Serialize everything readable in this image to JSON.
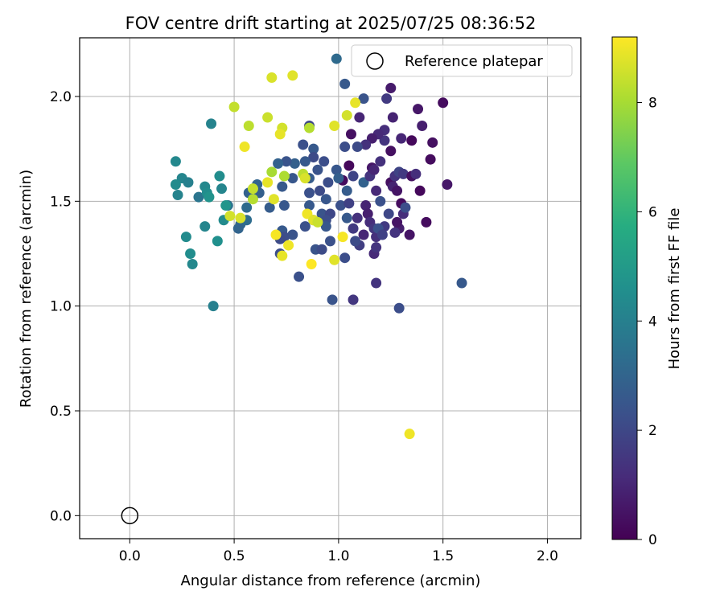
{
  "chart_data": {
    "type": "scatter",
    "title": "FOV centre drift starting at 2025/07/25 08:36:52",
    "xlabel": "Angular distance from reference (arcmin)",
    "ylabel": "Rotation from reference (arcmin)",
    "xlim": [
      -0.24,
      2.16
    ],
    "ylim": [
      -0.11,
      2.28
    ],
    "xticks": [
      0.0,
      0.5,
      1.0,
      1.5,
      2.0
    ],
    "xtick_labels": [
      "0.0",
      "0.5",
      "1.0",
      "1.5",
      "2.0"
    ],
    "yticks": [
      0.0,
      0.5,
      1.0,
      1.5,
      2.0
    ],
    "ytick_labels": [
      "0.0",
      "0.5",
      "1.0",
      "1.5",
      "2.0"
    ],
    "grid": true,
    "legend": {
      "position": "top-right",
      "entries": [
        "Reference platepar"
      ]
    },
    "reference_point": {
      "x": 0.0,
      "y": 0.0,
      "label": "Reference platepar"
    },
    "colorbar": {
      "label": "Hours from first FF file",
      "range": [
        0,
        9.2
      ],
      "ticks": [
        0,
        2,
        4,
        6,
        8
      ],
      "tick_labels": [
        "0",
        "2",
        "4",
        "6",
        "8"
      ],
      "colormap": "viridis"
    },
    "points": [
      {
        "x": 1.5,
        "y": 1.97,
        "h": 0.3
      },
      {
        "x": 1.38,
        "y": 1.94,
        "h": 0.6
      },
      {
        "x": 1.25,
        "y": 2.04,
        "h": 0.7
      },
      {
        "x": 1.35,
        "y": 1.79,
        "h": 0.2
      },
      {
        "x": 1.45,
        "y": 1.78,
        "h": 0.4
      },
      {
        "x": 1.44,
        "y": 1.7,
        "h": 0.3
      },
      {
        "x": 1.4,
        "y": 1.86,
        "h": 0.8
      },
      {
        "x": 1.39,
        "y": 1.55,
        "h": 0.2
      },
      {
        "x": 1.42,
        "y": 1.4,
        "h": 0.3
      },
      {
        "x": 1.34,
        "y": 1.34,
        "h": 0.5
      },
      {
        "x": 1.52,
        "y": 1.58,
        "h": 0.6
      },
      {
        "x": 1.25,
        "y": 1.74,
        "h": 0.4
      },
      {
        "x": 1.26,
        "y": 1.9,
        "h": 0.9
      },
      {
        "x": 1.22,
        "y": 1.84,
        "h": 1.2
      },
      {
        "x": 1.22,
        "y": 1.79,
        "h": 1.4
      },
      {
        "x": 1.19,
        "y": 1.82,
        "h": 1.1
      },
      {
        "x": 1.23,
        "y": 1.99,
        "h": 1.6
      },
      {
        "x": 1.16,
        "y": 1.8,
        "h": 0.8
      },
      {
        "x": 1.1,
        "y": 1.9,
        "h": 1.0
      },
      {
        "x": 1.13,
        "y": 1.77,
        "h": 1.3
      },
      {
        "x": 1.06,
        "y": 1.82,
        "h": 0.4
      },
      {
        "x": 1.05,
        "y": 1.67,
        "h": 0.2
      },
      {
        "x": 1.02,
        "y": 1.6,
        "h": 0.3
      },
      {
        "x": 1.07,
        "y": 1.62,
        "h": 1.9
      },
      {
        "x": 1.09,
        "y": 1.76,
        "h": 2.1
      },
      {
        "x": 1.12,
        "y": 1.99,
        "h": 2.4
      },
      {
        "x": 1.03,
        "y": 2.06,
        "h": 2.6
      },
      {
        "x": 0.99,
        "y": 2.18,
        "h": 3.2
      },
      {
        "x": 1.03,
        "y": 1.76,
        "h": 2.2
      },
      {
        "x": 0.99,
        "y": 1.65,
        "h": 2.5
      },
      {
        "x": 0.95,
        "y": 1.59,
        "h": 2.2
      },
      {
        "x": 1.0,
        "y": 1.61,
        "h": 2.8
      },
      {
        "x": 1.01,
        "y": 1.48,
        "h": 2.3
      },
      {
        "x": 1.04,
        "y": 1.55,
        "h": 2.7
      },
      {
        "x": 1.04,
        "y": 1.42,
        "h": 2.6
      },
      {
        "x": 1.05,
        "y": 1.49,
        "h": 1.8
      },
      {
        "x": 1.07,
        "y": 1.37,
        "h": 1.6
      },
      {
        "x": 1.09,
        "y": 1.42,
        "h": 1.3
      },
      {
        "x": 1.1,
        "y": 1.29,
        "h": 1.7
      },
      {
        "x": 1.08,
        "y": 1.31,
        "h": 2.1
      },
      {
        "x": 1.03,
        "y": 1.23,
        "h": 2.2
      },
      {
        "x": 1.07,
        "y": 1.03,
        "h": 1.5
      },
      {
        "x": 0.97,
        "y": 1.03,
        "h": 2.4
      },
      {
        "x": 1.18,
        "y": 1.11,
        "h": 1.4
      },
      {
        "x": 1.29,
        "y": 0.99,
        "h": 2.2
      },
      {
        "x": 1.59,
        "y": 1.11,
        "h": 2.6
      },
      {
        "x": 1.12,
        "y": 1.59,
        "h": 2.9
      },
      {
        "x": 1.15,
        "y": 1.62,
        "h": 1.4
      },
      {
        "x": 1.16,
        "y": 1.66,
        "h": 0.6
      },
      {
        "x": 1.17,
        "y": 1.65,
        "h": 1.0
      },
      {
        "x": 1.2,
        "y": 1.69,
        "h": 1.3
      },
      {
        "x": 1.18,
        "y": 1.55,
        "h": 1.1
      },
      {
        "x": 1.13,
        "y": 1.48,
        "h": 0.9
      },
      {
        "x": 1.14,
        "y": 1.44,
        "h": 0.8
      },
      {
        "x": 1.15,
        "y": 1.4,
        "h": 1.2
      },
      {
        "x": 1.12,
        "y": 1.34,
        "h": 1.0
      },
      {
        "x": 1.17,
        "y": 1.37,
        "h": 1.5
      },
      {
        "x": 1.18,
        "y": 1.33,
        "h": 1.3
      },
      {
        "x": 1.2,
        "y": 1.5,
        "h": 2.3
      },
      {
        "x": 1.22,
        "y": 1.38,
        "h": 1.6
      },
      {
        "x": 1.24,
        "y": 1.44,
        "h": 2.0
      },
      {
        "x": 1.25,
        "y": 1.59,
        "h": 0.4
      },
      {
        "x": 1.26,
        "y": 1.57,
        "h": 0.9
      },
      {
        "x": 1.27,
        "y": 1.62,
        "h": 1.4
      },
      {
        "x": 1.29,
        "y": 1.64,
        "h": 1.9
      },
      {
        "x": 1.31,
        "y": 1.63,
        "h": 1.6
      },
      {
        "x": 1.28,
        "y": 1.55,
        "h": 0.5
      },
      {
        "x": 1.3,
        "y": 1.49,
        "h": 0.3
      },
      {
        "x": 1.31,
        "y": 1.44,
        "h": 1.2
      },
      {
        "x": 1.29,
        "y": 1.37,
        "h": 0.8
      },
      {
        "x": 1.28,
        "y": 1.4,
        "h": 0.5
      },
      {
        "x": 1.27,
        "y": 1.35,
        "h": 1.4
      },
      {
        "x": 1.32,
        "y": 1.47,
        "h": 2.2
      },
      {
        "x": 1.35,
        "y": 1.62,
        "h": 0.4
      },
      {
        "x": 1.37,
        "y": 1.63,
        "h": 1.2
      },
      {
        "x": 1.3,
        "y": 1.8,
        "h": 1.0
      },
      {
        "x": 1.17,
        "y": 1.25,
        "h": 1.1
      },
      {
        "x": 1.18,
        "y": 1.28,
        "h": 1.4
      },
      {
        "x": 1.19,
        "y": 1.37,
        "h": 2.3
      },
      {
        "x": 1.21,
        "y": 1.34,
        "h": 1.8
      },
      {
        "x": 0.86,
        "y": 1.86,
        "h": 2.0
      },
      {
        "x": 0.88,
        "y": 1.75,
        "h": 2.6
      },
      {
        "x": 0.83,
        "y": 1.77,
        "h": 2.3
      },
      {
        "x": 0.88,
        "y": 1.71,
        "h": 2.1
      },
      {
        "x": 0.84,
        "y": 1.69,
        "h": 2.6
      },
      {
        "x": 0.79,
        "y": 1.68,
        "h": 2.8
      },
      {
        "x": 0.75,
        "y": 1.69,
        "h": 2.4
      },
      {
        "x": 0.71,
        "y": 1.68,
        "h": 2.9
      },
      {
        "x": 0.9,
        "y": 1.65,
        "h": 2.4
      },
      {
        "x": 0.93,
        "y": 1.69,
        "h": 2.2
      },
      {
        "x": 0.86,
        "y": 1.61,
        "h": 2.7
      },
      {
        "x": 0.78,
        "y": 1.61,
        "h": 2.5
      },
      {
        "x": 0.73,
        "y": 1.57,
        "h": 2.6
      },
      {
        "x": 0.86,
        "y": 1.54,
        "h": 2.3
      },
      {
        "x": 0.91,
        "y": 1.55,
        "h": 2.1
      },
      {
        "x": 0.94,
        "y": 1.51,
        "h": 2.5
      },
      {
        "x": 0.86,
        "y": 1.48,
        "h": 2.6
      },
      {
        "x": 0.74,
        "y": 1.48,
        "h": 2.5
      },
      {
        "x": 0.67,
        "y": 1.47,
        "h": 2.7
      },
      {
        "x": 0.92,
        "y": 1.44,
        "h": 2.4
      },
      {
        "x": 0.96,
        "y": 1.44,
        "h": 2.0
      },
      {
        "x": 0.94,
        "y": 1.41,
        "h": 2.2
      },
      {
        "x": 0.88,
        "y": 1.41,
        "h": 2.6
      },
      {
        "x": 0.94,
        "y": 1.38,
        "h": 2.5
      },
      {
        "x": 0.84,
        "y": 1.38,
        "h": 2.3
      },
      {
        "x": 0.78,
        "y": 1.34,
        "h": 2.4
      },
      {
        "x": 0.73,
        "y": 1.36,
        "h": 2.6
      },
      {
        "x": 0.74,
        "y": 1.33,
        "h": 2.2
      },
      {
        "x": 0.72,
        "y": 1.32,
        "h": 2.1
      },
      {
        "x": 0.96,
        "y": 1.31,
        "h": 2.3
      },
      {
        "x": 0.89,
        "y": 1.27,
        "h": 2.4
      },
      {
        "x": 0.92,
        "y": 1.27,
        "h": 2.1
      },
      {
        "x": 0.72,
        "y": 1.25,
        "h": 2.2
      },
      {
        "x": 0.81,
        "y": 1.14,
        "h": 2.3
      },
      {
        "x": 0.61,
        "y": 1.58,
        "h": 3.0
      },
      {
        "x": 0.62,
        "y": 1.54,
        "h": 2.8
      },
      {
        "x": 0.57,
        "y": 1.54,
        "h": 2.9
      },
      {
        "x": 0.53,
        "y": 1.39,
        "h": 3.1
      },
      {
        "x": 0.52,
        "y": 1.37,
        "h": 3.0
      },
      {
        "x": 0.56,
        "y": 1.41,
        "h": 3.3
      },
      {
        "x": 0.47,
        "y": 1.48,
        "h": 3.5
      },
      {
        "x": 0.56,
        "y": 1.47,
        "h": 3.2
      },
      {
        "x": 0.39,
        "y": 1.87,
        "h": 4.1
      },
      {
        "x": 0.22,
        "y": 1.69,
        "h": 4.3
      },
      {
        "x": 0.25,
        "y": 1.61,
        "h": 4.2
      },
      {
        "x": 0.28,
        "y": 1.59,
        "h": 4.0
      },
      {
        "x": 0.22,
        "y": 1.58,
        "h": 4.4
      },
      {
        "x": 0.23,
        "y": 1.53,
        "h": 4.1
      },
      {
        "x": 0.33,
        "y": 1.52,
        "h": 3.6
      },
      {
        "x": 0.36,
        "y": 1.57,
        "h": 4.3
      },
      {
        "x": 0.37,
        "y": 1.54,
        "h": 4.5
      },
      {
        "x": 0.38,
        "y": 1.52,
        "h": 4.7
      },
      {
        "x": 0.43,
        "y": 1.62,
        "h": 4.5
      },
      {
        "x": 0.44,
        "y": 1.56,
        "h": 4.2
      },
      {
        "x": 0.45,
        "y": 1.41,
        "h": 4.4
      },
      {
        "x": 0.46,
        "y": 1.48,
        "h": 4.8
      },
      {
        "x": 0.36,
        "y": 1.38,
        "h": 4.2
      },
      {
        "x": 0.27,
        "y": 1.33,
        "h": 4.4
      },
      {
        "x": 0.29,
        "y": 1.25,
        "h": 4.5
      },
      {
        "x": 0.3,
        "y": 1.2,
        "h": 4.3
      },
      {
        "x": 0.42,
        "y": 1.31,
        "h": 4.6
      },
      {
        "x": 0.4,
        "y": 1.0,
        "h": 4.0
      },
      {
        "x": 0.68,
        "y": 2.09,
        "h": 8.7
      },
      {
        "x": 0.78,
        "y": 2.1,
        "h": 8.8
      },
      {
        "x": 0.5,
        "y": 1.95,
        "h": 8.4
      },
      {
        "x": 0.66,
        "y": 1.9,
        "h": 8.5
      },
      {
        "x": 0.57,
        "y": 1.86,
        "h": 8.3
      },
      {
        "x": 0.73,
        "y": 1.85,
        "h": 8.6
      },
      {
        "x": 0.72,
        "y": 1.82,
        "h": 8.9
      },
      {
        "x": 0.55,
        "y": 1.76,
        "h": 9.0
      },
      {
        "x": 1.08,
        "y": 1.97,
        "h": 8.9
      },
      {
        "x": 1.04,
        "y": 1.91,
        "h": 8.6
      },
      {
        "x": 0.98,
        "y": 1.86,
        "h": 8.8
      },
      {
        "x": 0.86,
        "y": 1.85,
        "h": 8.2
      },
      {
        "x": 0.68,
        "y": 1.64,
        "h": 8.0
      },
      {
        "x": 0.74,
        "y": 1.62,
        "h": 8.1
      },
      {
        "x": 0.83,
        "y": 1.63,
        "h": 8.3
      },
      {
        "x": 0.84,
        "y": 1.61,
        "h": 8.7
      },
      {
        "x": 0.66,
        "y": 1.59,
        "h": 8.9
      },
      {
        "x": 0.59,
        "y": 1.56,
        "h": 8.4
      },
      {
        "x": 0.59,
        "y": 1.51,
        "h": 8.2
      },
      {
        "x": 0.69,
        "y": 1.51,
        "h": 8.8
      },
      {
        "x": 0.48,
        "y": 1.43,
        "h": 8.6
      },
      {
        "x": 0.53,
        "y": 1.42,
        "h": 8.7
      },
      {
        "x": 0.85,
        "y": 1.44,
        "h": 9.0
      },
      {
        "x": 0.88,
        "y": 1.41,
        "h": 8.8
      },
      {
        "x": 0.9,
        "y": 1.4,
        "h": 8.5
      },
      {
        "x": 0.7,
        "y": 1.34,
        "h": 9.1
      },
      {
        "x": 0.76,
        "y": 1.29,
        "h": 9.0
      },
      {
        "x": 0.73,
        "y": 1.24,
        "h": 8.9
      },
      {
        "x": 0.87,
        "y": 1.2,
        "h": 9.2
      },
      {
        "x": 0.98,
        "y": 1.22,
        "h": 8.8
      },
      {
        "x": 1.02,
        "y": 1.33,
        "h": 9.1
      },
      {
        "x": 1.34,
        "y": 0.39,
        "h": 9.0
      }
    ]
  }
}
